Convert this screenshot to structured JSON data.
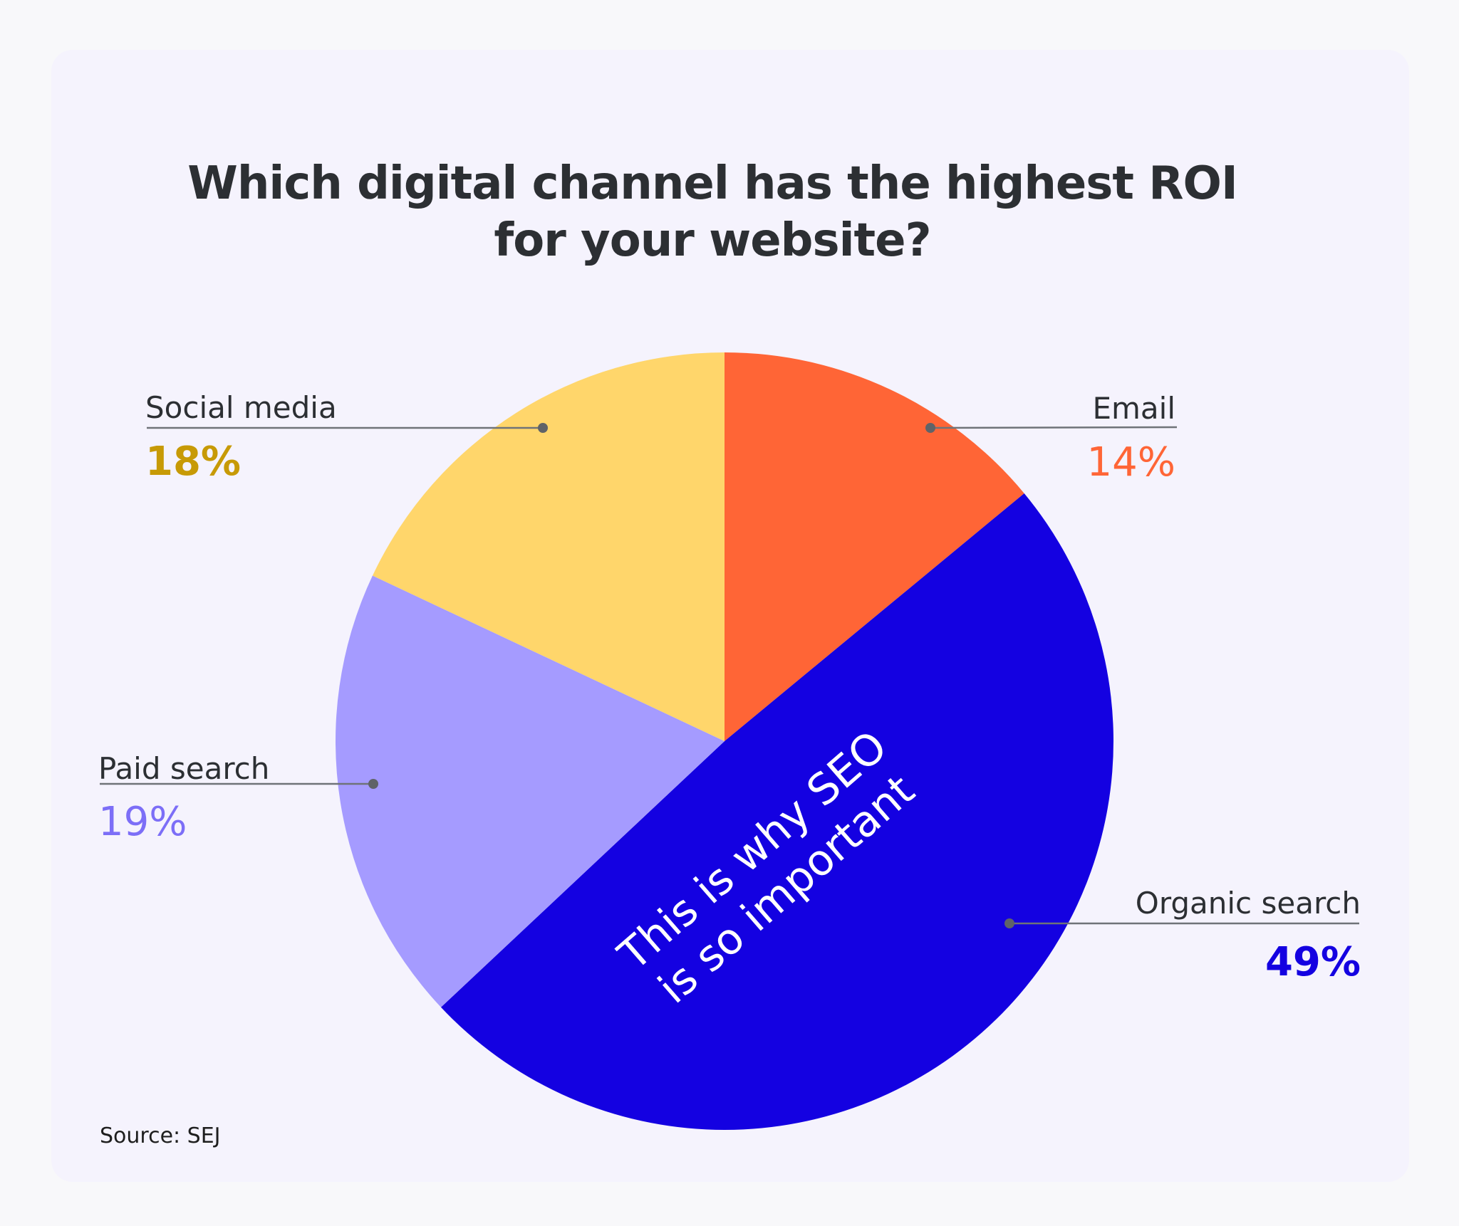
{
  "title_line1": "Which digital channel has the highest ROI",
  "title_line2": "for your website?",
  "source": "Source: SEJ",
  "colors": {
    "background": "#f8f8fa",
    "card": "#f5f3fd",
    "title": "#2c2f33",
    "leader_line": "#6f7378"
  },
  "chart_data": {
    "type": "pie",
    "title": "Which digital channel has the highest ROI for your website?",
    "annotation": "This is why SEO is so important",
    "annotation_lines": [
      "This is why SEO",
      "is so important"
    ],
    "slices": [
      {
        "label": "Email",
        "value": 14,
        "value_label": "14%",
        "color": "#ff6536",
        "label_color": "#ff6536"
      },
      {
        "label": "Organic search",
        "value": 49,
        "value_label": "49%",
        "color": "#1401e1",
        "label_color": "#1401e1"
      },
      {
        "label": "Paid search",
        "value": 19,
        "value_label": "19%",
        "color": "#a59bff",
        "label_color": "#7c6ef7"
      },
      {
        "label": "Social media",
        "value": 18,
        "value_label": "18%",
        "color": "#ffd66b",
        "label_color": "#c79a06"
      }
    ],
    "start_angle": "12 o'clock",
    "direction": "clockwise",
    "legend": "none (direct labels)"
  }
}
